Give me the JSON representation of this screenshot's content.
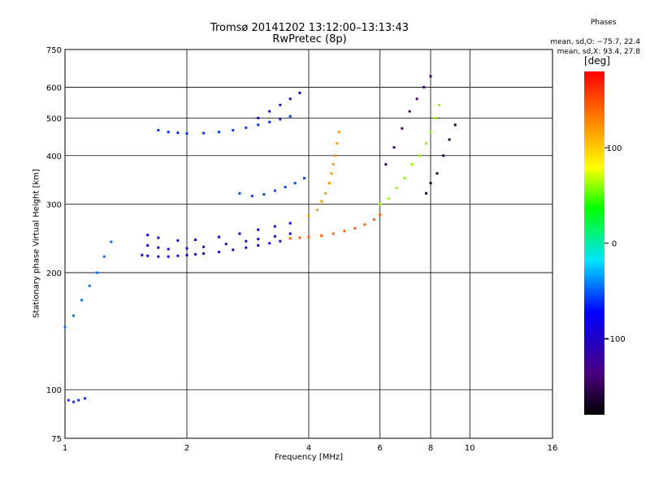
{
  "title": "Tromsø 20141202 13:12:00–13:13:43",
  "subtitle": "RwPretec (8p)",
  "phases": {
    "title": "Phases",
    "line_o": "mean, sd,O: −75.7, 22.4",
    "line_x": "mean, sd,X:  93.4, 27.8"
  },
  "colorbar": {
    "unit": "[deg]",
    "ticks": [
      "100",
      "0",
      "−100"
    ],
    "tick_values": [
      100,
      0,
      -100
    ],
    "range": [
      -180,
      180
    ]
  },
  "chart_data": {
    "type": "scatter",
    "xlabel": "Frequency [MHz]",
    "ylabel": "Stationary phase Virtual Height [km]",
    "xscale": "log",
    "yscale": "log",
    "xlim": [
      1,
      16
    ],
    "ylim": [
      75,
      750
    ],
    "x_ticks": [
      1,
      2,
      4,
      6,
      8,
      10,
      16
    ],
    "y_ticks": [
      75,
      100,
      200,
      300,
      400,
      500,
      600,
      750
    ],
    "grid": true,
    "point_groups": [
      {
        "name": "low-blue",
        "phase": -95,
        "points": [
          [
            1.55,
            222
          ],
          [
            1.6,
            221
          ],
          [
            1.7,
            220
          ],
          [
            1.8,
            220
          ],
          [
            1.9,
            221
          ],
          [
            2.0,
            222
          ],
          [
            2.1,
            223
          ],
          [
            2.2,
            224
          ],
          [
            2.4,
            226
          ],
          [
            2.6,
            229
          ],
          [
            2.8,
            232
          ],
          [
            3.0,
            235
          ],
          [
            3.2,
            238
          ],
          [
            3.4,
            241
          ]
        ]
      },
      {
        "name": "low-blue-2",
        "phase": -100,
        "points": [
          [
            1.6,
            235
          ],
          [
            1.7,
            232
          ],
          [
            1.8,
            230
          ],
          [
            2.0,
            231
          ],
          [
            2.2,
            233
          ],
          [
            2.5,
            237
          ],
          [
            2.8,
            241
          ],
          [
            3.0,
            244
          ],
          [
            3.3,
            248
          ],
          [
            3.6,
            252
          ]
        ]
      },
      {
        "name": "low-blue-3",
        "phase": -90,
        "points": [
          [
            1.6,
            250
          ],
          [
            1.7,
            246
          ],
          [
            1.9,
            242
          ],
          [
            2.1,
            243
          ],
          [
            2.4,
            247
          ],
          [
            2.7,
            252
          ],
          [
            3.0,
            258
          ],
          [
            3.3,
            263
          ],
          [
            3.6,
            268
          ]
        ]
      },
      {
        "name": "orange-red",
        "phase": 140,
        "points": [
          [
            3.6,
            245
          ],
          [
            3.8,
            246
          ],
          [
            4.0,
            247
          ],
          [
            4.3,
            249
          ],
          [
            4.6,
            252
          ],
          [
            4.9,
            256
          ],
          [
            5.2,
            260
          ],
          [
            5.5,
            266
          ],
          [
            5.8,
            274
          ],
          [
            6.0,
            282
          ]
        ]
      },
      {
        "name": "orange-upper",
        "phase": 120,
        "points": [
          [
            4.0,
            280
          ],
          [
            4.2,
            290
          ],
          [
            4.3,
            305
          ],
          [
            4.4,
            320
          ],
          [
            4.5,
            340
          ],
          [
            4.55,
            360
          ],
          [
            4.6,
            380
          ],
          [
            4.65,
            400
          ],
          [
            4.7,
            430
          ],
          [
            4.75,
            460
          ]
        ]
      },
      {
        "name": "F1-band",
        "phase": -60,
        "points": [
          [
            1.7,
            465
          ],
          [
            1.8,
            460
          ],
          [
            1.9,
            458
          ],
          [
            2.0,
            456
          ],
          [
            2.2,
            457
          ],
          [
            2.4,
            460
          ],
          [
            2.6,
            465
          ],
          [
            2.8,
            472
          ],
          [
            3.0,
            480
          ],
          [
            3.2,
            488
          ],
          [
            3.4,
            496
          ],
          [
            3.6,
            505
          ]
        ]
      },
      {
        "name": "upper-blue",
        "phase": -110,
        "points": [
          [
            3.0,
            500
          ],
          [
            3.2,
            520
          ],
          [
            3.4,
            540
          ],
          [
            3.6,
            560
          ],
          [
            3.8,
            580
          ]
        ]
      },
      {
        "name": "mid-cyan",
        "phase": -55,
        "points": [
          [
            2.7,
            320
          ],
          [
            2.9,
            315
          ],
          [
            3.1,
            318
          ],
          [
            3.3,
            325
          ],
          [
            3.5,
            332
          ],
          [
            3.7,
            340
          ],
          [
            3.9,
            350
          ]
        ]
      },
      {
        "name": "green-yellow",
        "phase": 60,
        "points": [
          [
            6.0,
            300
          ],
          [
            6.3,
            310
          ],
          [
            6.6,
            330
          ],
          [
            6.9,
            350
          ],
          [
            7.2,
            380
          ],
          [
            7.5,
            400
          ],
          [
            7.8,
            430
          ],
          [
            8.0,
            460
          ],
          [
            8.2,
            500
          ],
          [
            8.4,
            540
          ]
        ]
      },
      {
        "name": "dark-blue-high",
        "phase": -140,
        "points": [
          [
            6.2,
            380
          ],
          [
            6.5,
            420
          ],
          [
            6.8,
            470
          ],
          [
            7.1,
            520
          ],
          [
            7.4,
            560
          ],
          [
            7.7,
            600
          ],
          [
            8.0,
            640
          ]
        ]
      },
      {
        "name": "purple",
        "phase": -160,
        "points": [
          [
            7.8,
            320
          ],
          [
            8.0,
            340
          ],
          [
            8.3,
            360
          ],
          [
            8.6,
            400
          ],
          [
            8.9,
            440
          ],
          [
            9.2,
            480
          ]
        ]
      },
      {
        "name": "low-freq-cyan",
        "phase": -45,
        "points": [
          [
            1.0,
            145
          ],
          [
            1.05,
            155
          ],
          [
            1.1,
            170
          ],
          [
            1.15,
            185
          ],
          [
            1.2,
            200
          ],
          [
            1.25,
            220
          ],
          [
            1.3,
            240
          ]
        ]
      },
      {
        "name": "near-ground",
        "phase": -60,
        "points": [
          [
            1.02,
            94
          ],
          [
            1.05,
            93
          ],
          [
            1.08,
            94
          ],
          [
            1.12,
            95
          ]
        ]
      }
    ]
  }
}
